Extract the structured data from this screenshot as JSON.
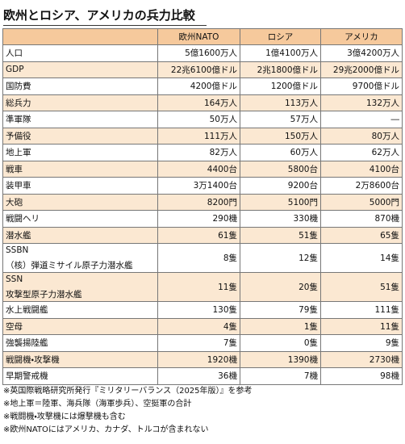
{
  "title": "欧州とロシア、アメリカの兵力比較",
  "table": {
    "header": [
      "欧州NATO",
      "ロシア",
      "アメリカ"
    ],
    "rows": [
      {
        "label": "人口",
        "values": [
          "5億1600万人",
          "1億4100万人",
          "3億4200万人"
        ]
      },
      {
        "label": "GDP",
        "values": [
          "22兆6100億ドル",
          "2兆1800億ドル",
          "29兆2000億ドル"
        ]
      },
      {
        "label": "国防費",
        "values": [
          "4200億ドル",
          "1200億ドル",
          "9700億ドル"
        ]
      },
      {
        "label": "総兵力",
        "values": [
          "164万人",
          "113万人",
          "132万人"
        ]
      },
      {
        "label": "準軍隊",
        "values": [
          "50万人",
          "57万人",
          "―"
        ]
      },
      {
        "label": "予備役",
        "values": [
          "111万人",
          "150万人",
          "80万人"
        ]
      },
      {
        "label": "地上軍",
        "values": [
          "82万人",
          "60万人",
          "62万人"
        ]
      },
      {
        "label": "戦車",
        "values": [
          "4400台",
          "5800台",
          "4100台"
        ]
      },
      {
        "label": "装甲車",
        "values": [
          "3万1400台",
          "9200台",
          "2万8600台"
        ]
      },
      {
        "label": "大砲",
        "values": [
          "8200門",
          "5100門",
          "5000門"
        ]
      },
      {
        "label": "戦闘ヘリ",
        "values": [
          "290機",
          "330機",
          "870機"
        ]
      },
      {
        "label": "潜水艦",
        "values": [
          "61隻",
          "51隻",
          "65隻"
        ]
      },
      {
        "label": "SSBN",
        "sublabel": "（核）弾道ミサイル原子力潜水艦",
        "values": [
          "8隻",
          "12隻",
          "14隻"
        ]
      },
      {
        "label": "SSN",
        "sublabel": "攻撃型原子力潜水艦",
        "values": [
          "11隻",
          "20隻",
          "51隻"
        ]
      },
      {
        "label": "水上戦闘艦",
        "values": [
          "130隻",
          "79隻",
          "111隻"
        ]
      },
      {
        "label": "空母",
        "values": [
          "4隻",
          "1隻",
          "11隻"
        ]
      },
      {
        "label": "強襲揚陸艦",
        "values": [
          "7隻",
          "0隻",
          "9隻"
        ]
      },
      {
        "label": "戦闘機・攻撃機",
        "values": [
          "1920機",
          "1390機",
          "2730機"
        ]
      },
      {
        "label": "早期警戒機",
        "values": [
          "36機",
          "7機",
          "98機"
        ]
      }
    ]
  },
  "notes": [
    "※英国際戦略研究所発行『ミリタリーバランス（2025年版）』を参考",
    "※地上軍＝陸軍、海兵隊（海軍歩兵）、空挺軍の合計",
    "※戦闘機・攻撃機には爆撃機も含む",
    "※欧州NATOにはアメリカ、カナダ、トルコが含まれない"
  ]
}
